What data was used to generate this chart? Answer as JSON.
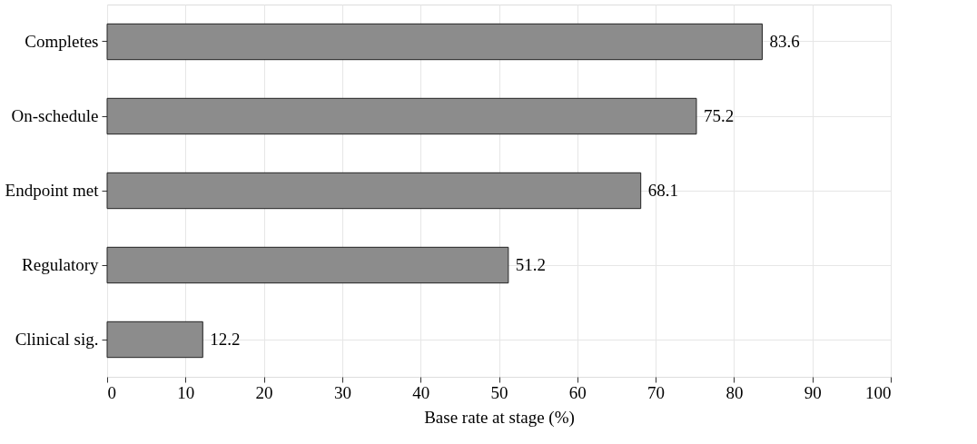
{
  "chart_data": {
    "type": "bar",
    "orientation": "horizontal",
    "xlabel": "Base rate at stage (%)",
    "categories": [
      "Completes",
      "On-schedule",
      "Endpoint met",
      "Regulatory",
      "Clinical sig."
    ],
    "values": [
      83.6,
      75.2,
      68.1,
      51.2,
      12.2
    ],
    "color": "#8c8c8c",
    "xlim": [
      0,
      100
    ],
    "xticks": [
      0,
      10,
      20,
      30,
      40,
      50,
      60,
      70,
      80,
      90,
      100
    ],
    "grid": true,
    "data_labels": true
  }
}
